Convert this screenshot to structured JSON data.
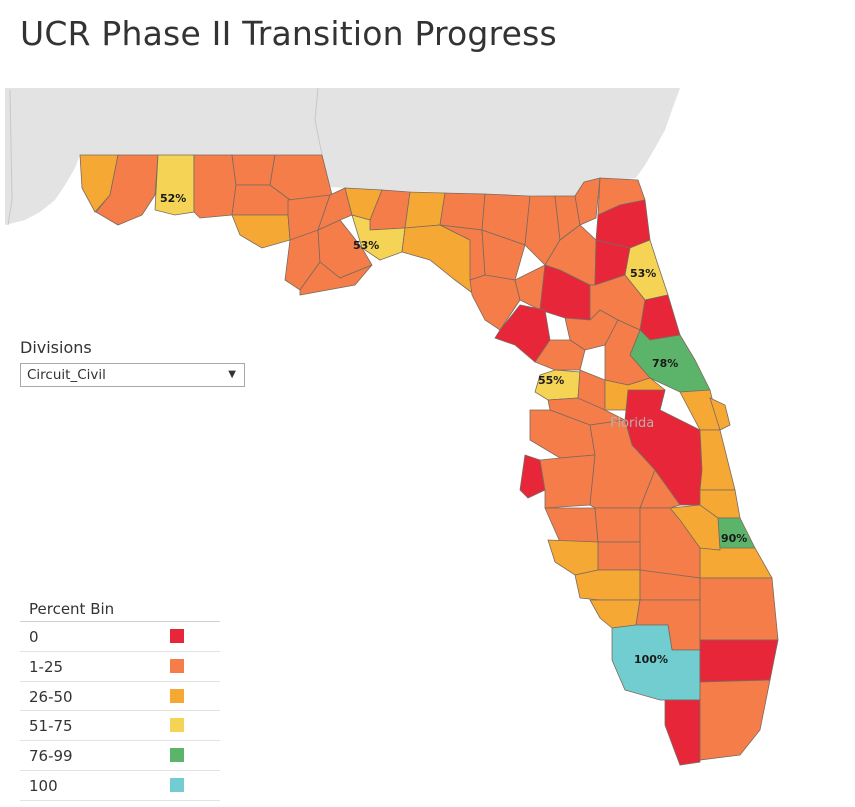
{
  "title": "UCR Phase II Transition Progress",
  "filter": {
    "label": "Divisions",
    "value": "Circuit_Civil"
  },
  "legend": {
    "title": "Percent Bin",
    "bins": [
      {
        "label": "0",
        "color": "#e8263a"
      },
      {
        "label": "1-25",
        "color": "#f47d4a"
      },
      {
        "label": "26-50",
        "color": "#f6a835"
      },
      {
        "label": "51-75",
        "color": "#f5d455"
      },
      {
        "label": "76-99",
        "color": "#5cb46a"
      },
      {
        "label": "100",
        "color": "#71cdd0"
      }
    ]
  },
  "map": {
    "state_label": "Florida",
    "labels": [
      "52%",
      "53%",
      "53%",
      "78%",
      "55%",
      "90%",
      "100%"
    ]
  }
}
